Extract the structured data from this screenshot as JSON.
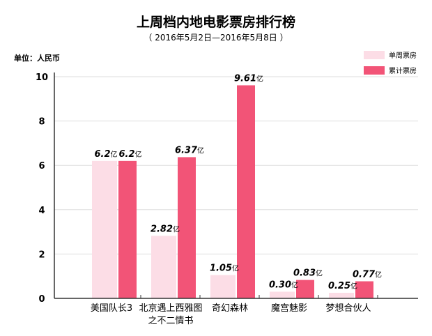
{
  "chart_data": {
    "type": "bar",
    "title": "上周档内地电影票房排行榜",
    "subtitle": "（ 2016年5月2日—2016年5月8日 ）",
    "ylabel": "单位：人民币",
    "value_unit": "亿",
    "ylim": [
      0,
      10
    ],
    "yticks": [
      "0",
      "2",
      "4",
      "6",
      "8",
      "10"
    ],
    "legend_position": "top-right",
    "categories": [
      [
        "美国队长3"
      ],
      [
        "北京遇上西雅图",
        "之不二情书"
      ],
      [
        "奇幻森林"
      ],
      [
        "魔宫魅影"
      ],
      [
        "梦想合伙人"
      ]
    ],
    "series": [
      {
        "name": "单周票房",
        "color": "#fcdde6",
        "values": [
          6.2,
          2.82,
          1.05,
          0.3,
          0.25
        ],
        "labels": [
          "6.2",
          "2.82",
          "1.05",
          "0.30",
          "0.25"
        ]
      },
      {
        "name": "累计票房",
        "color": "#f25477",
        "values": [
          6.2,
          6.37,
          9.61,
          0.83,
          0.77
        ],
        "labels": [
          "6.2",
          "6.37",
          "9.61",
          "0.83",
          "0.77"
        ]
      }
    ]
  }
}
